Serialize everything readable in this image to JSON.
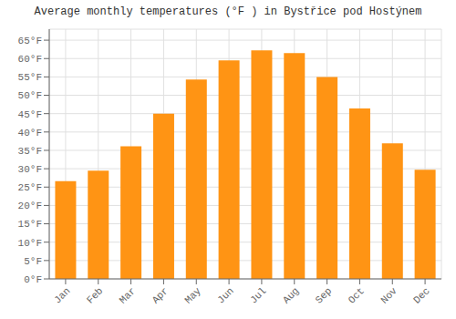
{
  "chart_data": {
    "type": "bar",
    "title": "Average monthly temperatures (°F ) in Bystřice pod Hostýnem",
    "categories": [
      "Jan",
      "Feb",
      "Mar",
      "Apr",
      "May",
      "Jun",
      "Jul",
      "Aug",
      "Sep",
      "Oct",
      "Nov",
      "Dec"
    ],
    "values": [
      26.6,
      29.5,
      36.1,
      45.0,
      54.3,
      59.5,
      62.2,
      61.5,
      55.0,
      46.4,
      36.9,
      29.7
    ],
    "color": "#ff9414",
    "ylim": [
      0,
      68
    ],
    "yticks": [
      {
        "value": 0,
        "label": "0°F"
      },
      {
        "value": 5,
        "label": "5°F"
      },
      {
        "value": 10,
        "label": "10°F"
      },
      {
        "value": 15,
        "label": "15°F"
      },
      {
        "value": 20,
        "label": "20°F"
      },
      {
        "value": 25,
        "label": "25°F"
      },
      {
        "value": 30,
        "label": "30°F"
      },
      {
        "value": 35,
        "label": "35°F"
      },
      {
        "value": 40,
        "label": "40°F"
      },
      {
        "value": 45,
        "label": "45°F"
      },
      {
        "value": 50,
        "label": "50°F"
      },
      {
        "value": 55,
        "label": "55°F"
      },
      {
        "value": 60,
        "label": "60°F"
      },
      {
        "value": 65,
        "label": "65°F"
      }
    ],
    "grid": true
  }
}
